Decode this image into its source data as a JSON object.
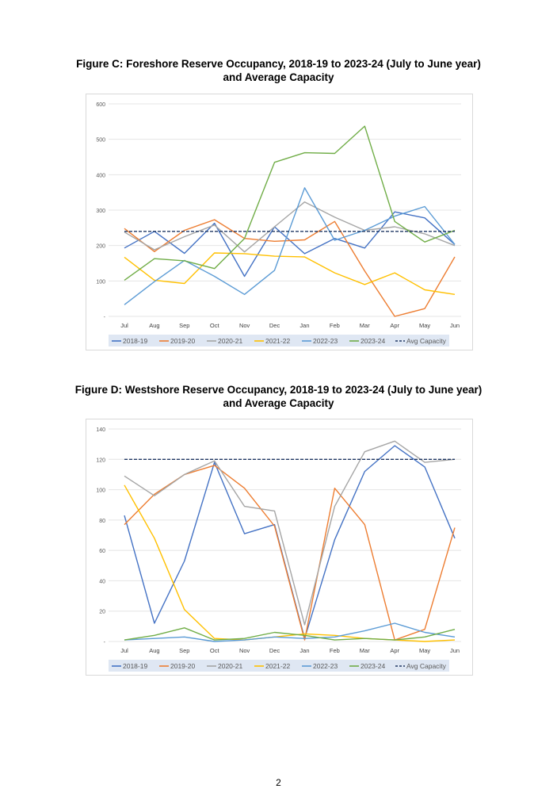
{
  "page_number": "2",
  "chart_data": [
    {
      "type": "line",
      "title_line1": "Figure C: Foreshore Reserve Occupancy, 2018-19 to 2023-24 (July to June year)",
      "title_line2": "and Average Capacity",
      "xlabel": "",
      "ylabel": "",
      "categories": [
        "Jul",
        "Aug",
        "Sep",
        "Oct",
        "Nov",
        "Dec",
        "Jan",
        "Feb",
        "Mar",
        "Apr",
        "May",
        "Jun"
      ],
      "ylim": [
        0,
        600
      ],
      "yticks": [
        "-",
        "100",
        "200",
        "300",
        "400",
        "500",
        "600"
      ],
      "grid": true,
      "legend_position": "bottom",
      "series": [
        {
          "name": "2018-19",
          "color": "#4472c4",
          "dashed": false,
          "values": [
            193,
            240,
            178,
            263,
            113,
            253,
            177,
            220,
            193,
            295,
            278,
            203
          ]
        },
        {
          "name": "2019-20",
          "color": "#ed7d31",
          "dashed": false,
          "values": [
            248,
            183,
            243,
            273,
            220,
            212,
            216,
            268,
            128,
            0,
            22,
            168
          ]
        },
        {
          "name": "2020-21",
          "color": "#a5a5a5",
          "dashed": false,
          "values": [
            238,
            188,
            225,
            258,
            182,
            253,
            323,
            280,
            243,
            253,
            233,
            200
          ]
        },
        {
          "name": "2021-22",
          "color": "#ffc000",
          "dashed": false,
          "values": [
            167,
            102,
            93,
            179,
            177,
            170,
            168,
            123,
            90,
            123,
            75,
            62
          ]
        },
        {
          "name": "2022-23",
          "color": "#5b9bd5",
          "dashed": false,
          "values": [
            33,
            98,
            158,
            113,
            62,
            130,
            363,
            215,
            243,
            283,
            310,
            203
          ]
        },
        {
          "name": "2023-24",
          "color": "#70ad47",
          "dashed": false,
          "values": [
            102,
            163,
            157,
            135,
            220,
            435,
            462,
            460,
            537,
            268,
            210,
            243
          ]
        },
        {
          "name": "Avg Capacity",
          "color": "#203864",
          "dashed": true,
          "values": [
            240,
            240,
            240,
            240,
            240,
            240,
            240,
            240,
            240,
            240,
            240,
            240
          ]
        }
      ]
    },
    {
      "type": "line",
      "title_line1": "Figure D: Westshore Reserve Occupancy, 2018-19 to 2023-24 (July to June year)",
      "title_line2": "and Average Capacity",
      "xlabel": "",
      "ylabel": "",
      "categories": [
        "Jul",
        "Aug",
        "Sep",
        "Oct",
        "Nov",
        "Dec",
        "Jan",
        "Feb",
        "Mar",
        "Apr",
        "May",
        "Jun"
      ],
      "ylim": [
        0,
        140
      ],
      "yticks": [
        "-",
        "20",
        "40",
        "60",
        "80",
        "100",
        "120",
        "140"
      ],
      "grid": true,
      "legend_position": "bottom",
      "series": [
        {
          "name": "2018-19",
          "color": "#4472c4",
          "dashed": false,
          "values": [
            83,
            12,
            53,
            118,
            71,
            77,
            2,
            67,
            112,
            129,
            115,
            68
          ]
        },
        {
          "name": "2019-20",
          "color": "#ed7d31",
          "dashed": false,
          "values": [
            77,
            97,
            110,
            116,
            101,
            76,
            1,
            101,
            77,
            1,
            8,
            75
          ]
        },
        {
          "name": "2020-21",
          "color": "#a5a5a5",
          "dashed": false,
          "values": [
            109,
            96,
            110,
            119,
            89,
            86,
            11,
            89,
            125,
            132,
            118,
            120
          ]
        },
        {
          "name": "2021-22",
          "color": "#ffc000",
          "dashed": false,
          "values": [
            103,
            68,
            21,
            2,
            1,
            3,
            5,
            4,
            2,
            1,
            0,
            1
          ]
        },
        {
          "name": "2022-23",
          "color": "#5b9bd5",
          "dashed": false,
          "values": [
            1,
            2,
            3,
            0,
            1,
            3,
            2,
            3,
            7,
            12,
            6,
            3
          ]
        },
        {
          "name": "2023-24",
          "color": "#70ad47",
          "dashed": false,
          "values": [
            1,
            4,
            9,
            1,
            2,
            6,
            4,
            1,
            2,
            1,
            3,
            8
          ]
        },
        {
          "name": "Avg Capacity",
          "color": "#203864",
          "dashed": true,
          "values": [
            120,
            120,
            120,
            120,
            120,
            120,
            120,
            120,
            120,
            120,
            120,
            120
          ]
        }
      ]
    }
  ]
}
